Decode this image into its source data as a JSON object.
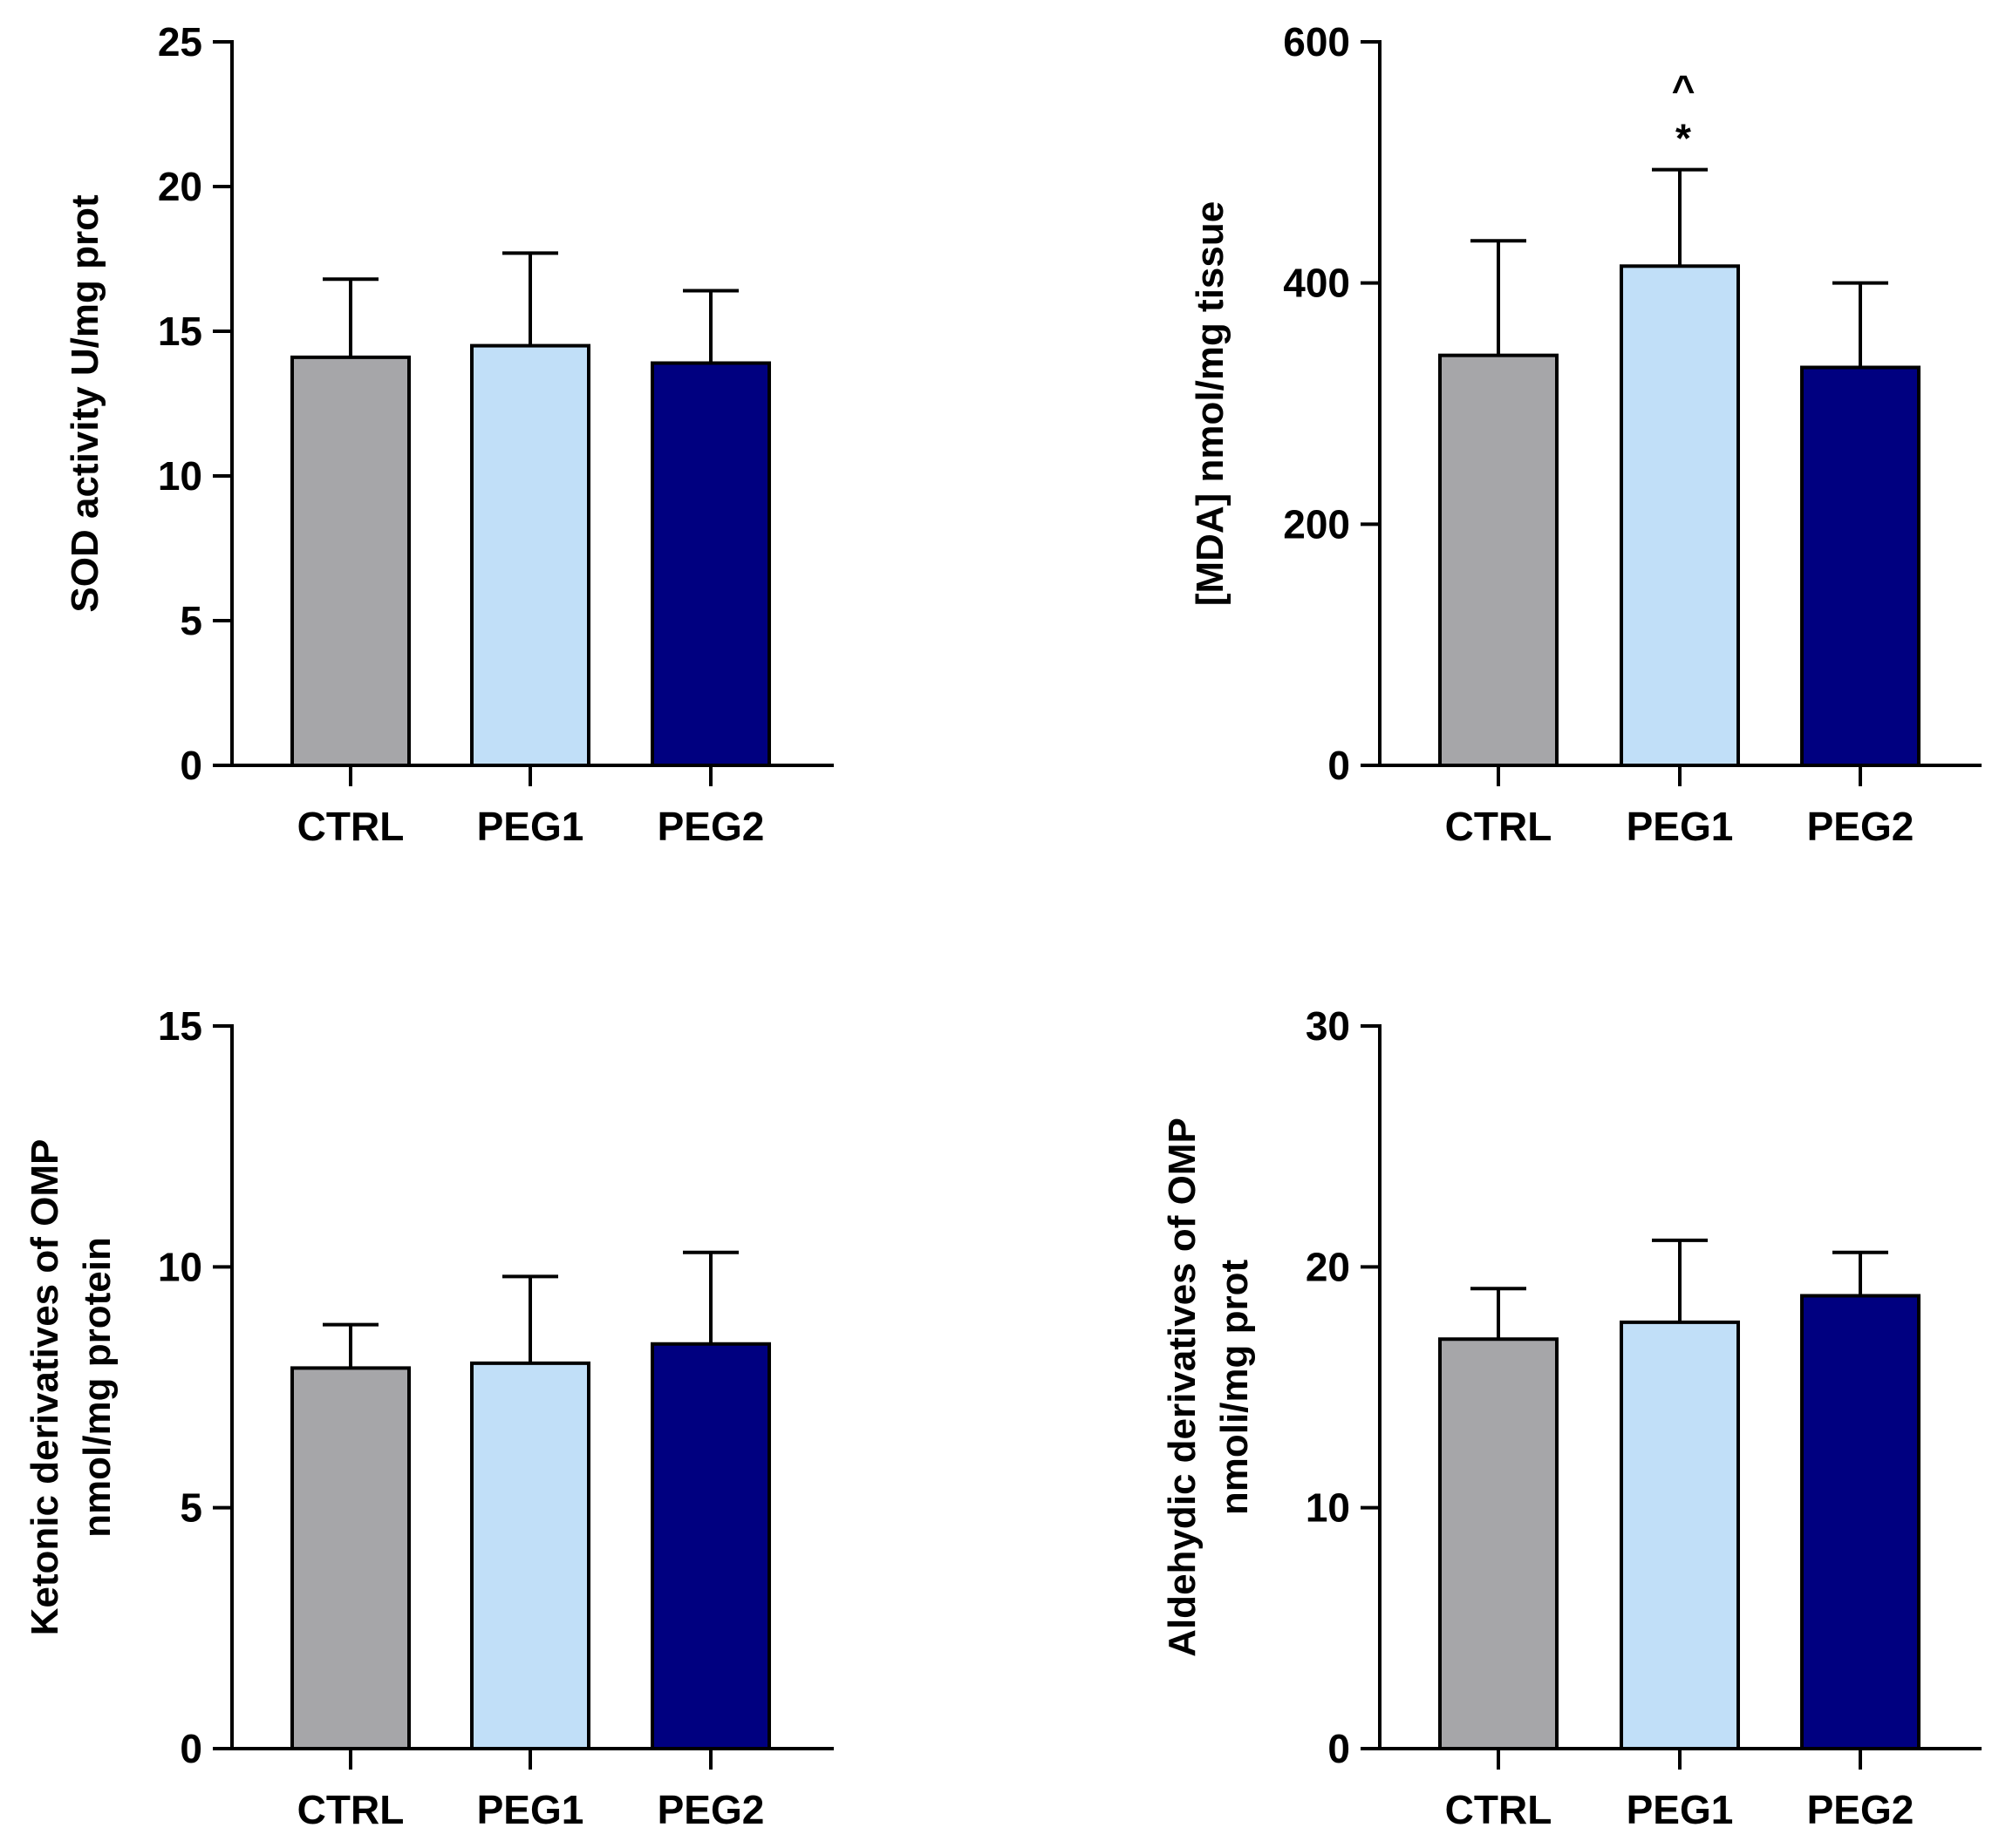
{
  "chart_data": [
    {
      "type": "bar",
      "categories": [
        "CTRL",
        "PEG1",
        "PEG2"
      ],
      "values": [
        14.1,
        14.5,
        13.9
      ],
      "errors": [
        2.7,
        3.2,
        2.5
      ],
      "colors": [
        "#a6a6a9",
        "#c1dff8",
        "#000080"
      ],
      "ylabel": [
        "SOD activity U/mg prot"
      ],
      "ylim": [
        0,
        25
      ],
      "yticks": [
        0,
        5,
        10,
        15,
        20,
        25
      ],
      "annotations": []
    },
    {
      "type": "bar",
      "categories": [
        "CTRL",
        "PEG1",
        "PEG2"
      ],
      "values": [
        340,
        414,
        330
      ],
      "errors": [
        95,
        80,
        70
      ],
      "colors": [
        "#a6a6a9",
        "#c1dff8",
        "#000080"
      ],
      "ylabel": [
        "[MDA] nmol/mg tissue"
      ],
      "ylim": [
        0,
        600
      ],
      "yticks": [
        0,
        200,
        400,
        600
      ],
      "annotations": [
        {
          "category": "PEG1",
          "text": "*"
        },
        {
          "category": "PEG1",
          "text": "^"
        }
      ]
    },
    {
      "type": "bar",
      "categories": [
        "CTRL",
        "PEG1",
        "PEG2"
      ],
      "values": [
        7.9,
        8.0,
        8.4
      ],
      "errors": [
        0.9,
        1.8,
        1.9
      ],
      "colors": [
        "#a6a6a9",
        "#c1dff8",
        "#000080"
      ],
      "ylabel": [
        "Ketonic derivatives of OMP",
        "nmol/mg protein"
      ],
      "ylim": [
        0,
        15
      ],
      "yticks": [
        0,
        5,
        10,
        15
      ],
      "annotations": []
    },
    {
      "type": "bar",
      "categories": [
        "CTRL",
        "PEG1",
        "PEG2"
      ],
      "values": [
        17.0,
        17.7,
        18.8
      ],
      "errors": [
        2.1,
        3.4,
        1.8
      ],
      "colors": [
        "#a6a6a9",
        "#c1dff8",
        "#000080"
      ],
      "ylabel": [
        "Aldehydic derivatives of OMP",
        "nmoli/mg prot"
      ],
      "ylim": [
        0,
        30
      ],
      "yticks": [
        0,
        10,
        20,
        30
      ],
      "annotations": []
    }
  ]
}
